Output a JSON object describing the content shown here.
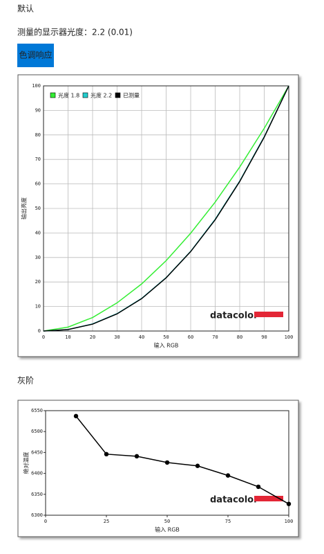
{
  "page": {
    "default": "默认",
    "gamma_line": "测量的显示器光度：2.2 (0.01)",
    "tab": "色调响应",
    "grayscale": "灰阶"
  },
  "chart_data": [
    {
      "type": "line",
      "xlabel": "输入 RGB",
      "ylabel": "输出亮度",
      "logo": "datacolor",
      "x": [
        0,
        10,
        20,
        30,
        40,
        50,
        60,
        70,
        80,
        90,
        100
      ],
      "series": [
        {
          "name": "光度 1.8",
          "color": "#33ee33",
          "values": [
            0,
            1.6,
            5.5,
            11.5,
            19.2,
            28.7,
            39.9,
            52.6,
            66.9,
            82.7,
            100
          ]
        },
        {
          "name": "光度 2.2",
          "color": "#22cccc",
          "values": [
            0,
            0.6,
            2.9,
            7.1,
            13.3,
            21.8,
            32.5,
            45.6,
            61.2,
            79.3,
            100
          ]
        },
        {
          "name": "已测量",
          "color": "#000000",
          "values": [
            0,
            0.6,
            2.8,
            7.0,
            13.2,
            21.7,
            32.4,
            45.4,
            61.0,
            79.1,
            100
          ]
        }
      ],
      "xlim": [
        0,
        100
      ],
      "xticks": [
        0,
        10,
        20,
        30,
        40,
        50,
        60,
        70,
        80,
        90,
        100
      ],
      "ylim": [
        0,
        100
      ],
      "yticks": [
        0,
        10,
        20,
        30,
        40,
        50,
        60,
        70,
        80,
        90,
        100
      ],
      "grid": true,
      "legend": "upper left",
      "markers": false
    },
    {
      "type": "line",
      "xlabel": "输入 RGB",
      "ylabel": "绝对温度",
      "logo": "datacolor",
      "x": [
        12.5,
        25,
        37.5,
        50,
        62.5,
        75,
        87.5,
        100
      ],
      "series": [
        {
          "color": "#000000",
          "values": [
            6537,
            6446,
            6441,
            6426,
            6418,
            6395,
            6368,
            6327
          ]
        }
      ],
      "xlim": [
        0,
        100
      ],
      "xticks": [
        0,
        25,
        50,
        75,
        100
      ],
      "ylim": [
        6300,
        6550
      ],
      "yticks": [
        6300,
        6350,
        6400,
        6450,
        6500,
        6550
      ],
      "grid": false,
      "markers": true
    }
  ]
}
